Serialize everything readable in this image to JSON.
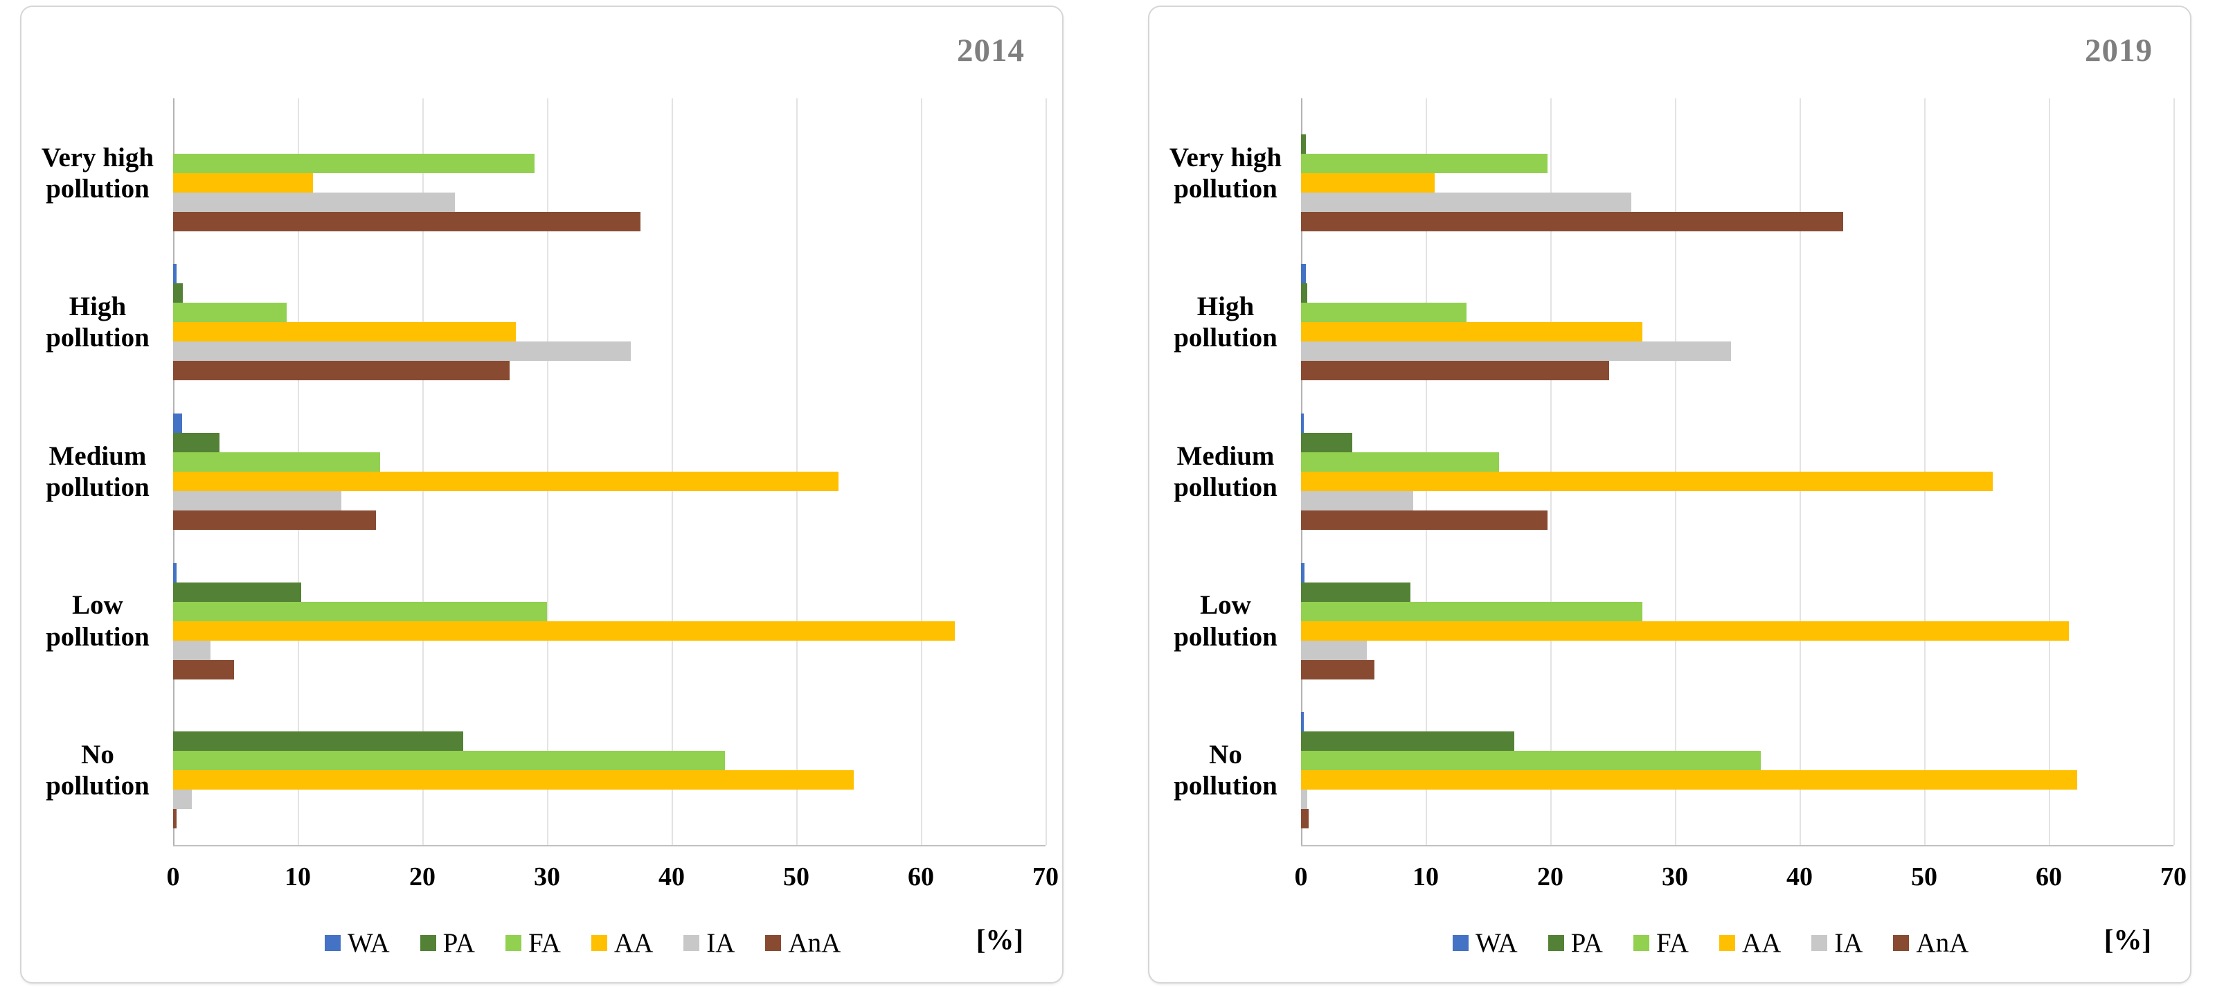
{
  "page": {
    "background": "#ffffff"
  },
  "style_colors": {
    "grid": "#e3e3e3",
    "axis_line": "#b3b3b3",
    "year_label": "#7f7f7f"
  },
  "chart_data": [
    {
      "type": "bar",
      "orientation": "horizontal",
      "title": "2014",
      "xlabel": "[%]",
      "xlim": [
        0,
        70
      ],
      "xticks": [
        0,
        10,
        20,
        30,
        40,
        50,
        60,
        70
      ],
      "grid": true,
      "legend_position": "bottom",
      "categories": [
        "Very high\npollution",
        "High\npollution",
        "Medium\npollution",
        "Low\npollution",
        "No\npollution"
      ],
      "series": [
        {
          "name": "WA",
          "color": "#4472C4",
          "values": [
            0,
            0.3,
            0.7,
            0.3,
            0
          ]
        },
        {
          "name": "PA",
          "color": "#538135",
          "values": [
            0,
            0.8,
            3.7,
            10.3,
            23.3
          ]
        },
        {
          "name": "FA",
          "color": "#92D050",
          "values": [
            29,
            9.1,
            16.6,
            30,
            44.3
          ]
        },
        {
          "name": "AA",
          "color": "#FFC000",
          "values": [
            11.2,
            27.5,
            53.4,
            62.7,
            54.6
          ]
        },
        {
          "name": "IA",
          "color": "#C8C8C8",
          "values": [
            22.6,
            36.7,
            13.5,
            3,
            1.5
          ]
        },
        {
          "name": "AnA",
          "color": "#884B32",
          "values": [
            37.5,
            27,
            16.3,
            4.9,
            0.3
          ]
        }
      ]
    },
    {
      "type": "bar",
      "orientation": "horizontal",
      "title": "2019",
      "xlabel": "[%]",
      "xlim": [
        0,
        70
      ],
      "xticks": [
        0,
        10,
        20,
        30,
        40,
        50,
        60,
        70
      ],
      "grid": true,
      "legend_position": "bottom",
      "categories": [
        "Very high\npollution",
        "High\npollution",
        "Medium\npollution",
        "Low\npollution",
        "No\npollution"
      ],
      "series": [
        {
          "name": "WA",
          "color": "#4472C4",
          "values": [
            0,
            0.4,
            0.2,
            0.3,
            0.2
          ]
        },
        {
          "name": "PA",
          "color": "#538135",
          "values": [
            0.4,
            0.5,
            4.1,
            8.8,
            17.1
          ]
        },
        {
          "name": "FA",
          "color": "#92D050",
          "values": [
            19.8,
            13.3,
            15.9,
            27.4,
            36.9
          ]
        },
        {
          "name": "AA",
          "color": "#FFC000",
          "values": [
            10.7,
            27.4,
            55.5,
            61.6,
            62.3
          ]
        },
        {
          "name": "IA",
          "color": "#C8C8C8",
          "values": [
            26.5,
            34.5,
            9,
            5.3,
            0.5
          ]
        },
        {
          "name": "AnA",
          "color": "#884B32",
          "values": [
            43.5,
            24.7,
            19.8,
            5.9,
            0.6
          ]
        }
      ]
    }
  ]
}
